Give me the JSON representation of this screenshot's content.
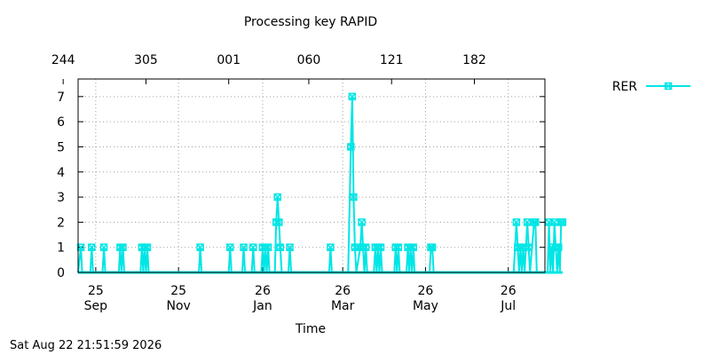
{
  "chart_data": {
    "type": "line",
    "title": "Processing key RAPID",
    "xlabel": "Time",
    "ylabel": "",
    "ylim": [
      0,
      7.7
    ],
    "xlim": [
      "2025-09-12",
      "2026-08-22"
    ],
    "grid": true,
    "legend": "top-right",
    "bottom_ticks": [
      {
        "date": "2025-09-25",
        "day": "25",
        "month": "Sep"
      },
      {
        "date": "2025-11-25",
        "day": "25",
        "month": "Nov"
      },
      {
        "date": "2026-01-26",
        "day": "26",
        "month": "Jan"
      },
      {
        "date": "2026-03-26",
        "day": "26",
        "month": "Mar"
      },
      {
        "date": "2026-05-26",
        "day": "26",
        "month": "May"
      },
      {
        "date": "2026-07-26",
        "day": "26",
        "month": "Jul"
      }
    ],
    "top_ticks": [
      {
        "date": "2025-09-01",
        "label": "244"
      },
      {
        "date": "2025-11-01",
        "label": "305"
      },
      {
        "date": "2026-01-01",
        "label": "001"
      },
      {
        "date": "2026-03-01",
        "label": "060"
      },
      {
        "date": "2026-05-01",
        "label": "121"
      },
      {
        "date": "2026-07-01",
        "label": "182"
      }
    ],
    "yticks": [
      0,
      1,
      2,
      3,
      4,
      5,
      6,
      7
    ],
    "series": [
      {
        "name": "RER",
        "color": "#00e5e5",
        "points": [
          [
            "2025-09-12",
            0
          ],
          [
            "2025-09-14",
            1
          ],
          [
            "2025-09-15",
            0
          ],
          [
            "2025-09-21",
            0
          ],
          [
            "2025-09-22",
            1
          ],
          [
            "2025-09-23",
            0
          ],
          [
            "2025-09-30",
            0
          ],
          [
            "2025-10-01",
            1
          ],
          [
            "2025-10-02",
            0
          ],
          [
            "2025-10-12",
            0
          ],
          [
            "2025-10-13",
            1
          ],
          [
            "2025-10-14",
            0
          ],
          [
            "2025-10-15",
            1
          ],
          [
            "2025-10-16",
            0
          ],
          [
            "2025-10-28",
            0
          ],
          [
            "2025-10-29",
            1
          ],
          [
            "2025-10-30",
            0
          ],
          [
            "2025-10-31",
            1
          ],
          [
            "2025-11-01",
            0
          ],
          [
            "2025-11-02",
            1
          ],
          [
            "2025-11-03",
            0
          ],
          [
            "2025-12-10",
            0
          ],
          [
            "2025-12-11",
            1
          ],
          [
            "2025-12-12",
            0
          ],
          [
            "2026-01-01",
            0
          ],
          [
            "2026-01-02",
            1
          ],
          [
            "2026-01-03",
            0
          ],
          [
            "2026-01-11",
            0
          ],
          [
            "2026-01-12",
            1
          ],
          [
            "2026-01-13",
            0
          ],
          [
            "2026-01-18",
            0
          ],
          [
            "2026-01-19",
            1
          ],
          [
            "2026-01-20",
            0
          ],
          [
            "2026-01-25",
            0
          ],
          [
            "2026-01-26",
            1
          ],
          [
            "2026-01-27",
            0
          ],
          [
            "2026-01-28",
            1
          ],
          [
            "2026-01-29",
            0
          ],
          [
            "2026-01-30",
            1
          ],
          [
            "2026-01-31",
            0
          ],
          [
            "2026-02-04",
            0
          ],
          [
            "2026-02-05",
            2
          ],
          [
            "2026-02-06",
            3
          ],
          [
            "2026-02-07",
            2
          ],
          [
            "2026-02-08",
            1
          ],
          [
            "2026-02-09",
            0
          ],
          [
            "2026-02-14",
            0
          ],
          [
            "2026-02-15",
            1
          ],
          [
            "2026-02-16",
            0
          ],
          [
            "2026-03-16",
            0
          ],
          [
            "2026-03-17",
            1
          ],
          [
            "2026-03-18",
            0
          ],
          [
            "2026-03-30",
            0
          ],
          [
            "2026-04-01",
            5
          ],
          [
            "2026-04-02",
            7
          ],
          [
            "2026-04-03",
            3
          ],
          [
            "2026-04-04",
            1
          ],
          [
            "2026-04-05",
            0
          ],
          [
            "2026-04-08",
            1
          ],
          [
            "2026-04-09",
            2
          ],
          [
            "2026-04-10",
            1
          ],
          [
            "2026-04-11",
            0
          ],
          [
            "2026-04-12",
            1
          ],
          [
            "2026-04-13",
            0
          ],
          [
            "2026-04-18",
            0
          ],
          [
            "2026-04-19",
            1
          ],
          [
            "2026-04-20",
            0
          ],
          [
            "2026-04-21",
            1
          ],
          [
            "2026-04-22",
            0
          ],
          [
            "2026-04-23",
            1
          ],
          [
            "2026-04-24",
            0
          ],
          [
            "2026-05-03",
            0
          ],
          [
            "2026-05-04",
            1
          ],
          [
            "2026-05-05",
            0
          ],
          [
            "2026-05-06",
            1
          ],
          [
            "2026-05-07",
            0
          ],
          [
            "2026-05-12",
            0
          ],
          [
            "2026-05-13",
            1
          ],
          [
            "2026-05-14",
            0
          ],
          [
            "2026-05-15",
            1
          ],
          [
            "2026-05-16",
            0
          ],
          [
            "2026-05-17",
            1
          ],
          [
            "2026-05-18",
            0
          ],
          [
            "2026-05-29",
            0
          ],
          [
            "2026-05-30",
            1
          ],
          [
            "2026-05-31",
            1
          ],
          [
            "2026-06-01",
            0
          ],
          [
            "2026-07-30",
            0
          ],
          [
            "2026-08-01",
            2
          ],
          [
            "2026-08-02",
            1
          ],
          [
            "2026-08-03",
            0
          ],
          [
            "2026-08-04",
            1
          ],
          [
            "2026-08-05",
            0
          ],
          [
            "2026-08-06",
            1
          ],
          [
            "2026-08-07",
            0
          ],
          [
            "2026-08-09",
            2
          ],
          [
            "2026-08-10",
            1
          ],
          [
            "2026-08-11",
            0
          ],
          [
            "2026-08-14",
            2
          ],
          [
            "2026-08-15",
            2
          ],
          [
            "2026-08-16",
            0
          ],
          [
            "2026-08-24",
            0
          ],
          [
            "2026-08-25",
            2
          ],
          [
            "2026-08-26",
            0
          ],
          [
            "2026-08-27",
            1
          ],
          [
            "2026-08-28",
            0
          ],
          [
            "2026-08-29",
            2
          ],
          [
            "2026-08-30",
            1
          ],
          [
            "2026-08-31",
            0
          ],
          [
            "2026-09-01",
            1
          ],
          [
            "2026-09-02",
            0
          ],
          [
            "2026-09-03",
            2
          ],
          [
            "2026-09-04",
            2
          ]
        ]
      }
    ]
  },
  "footer": {
    "timestamp": "Sat Aug 22 21:51:59 2026"
  }
}
